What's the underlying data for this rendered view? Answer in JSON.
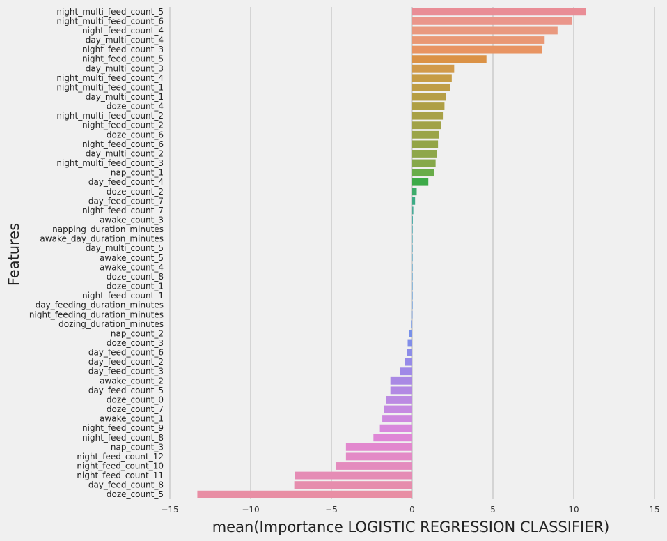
{
  "chart_data": {
    "type": "bar",
    "orientation": "horizontal",
    "xlabel": "mean(Importance LOGISTIC REGRESSION CLASSIFIER)",
    "ylabel": "Features",
    "xlim": [
      -15,
      15
    ],
    "xticks": [
      -15,
      -10,
      -5,
      0,
      5,
      10,
      15
    ],
    "grid": "vertical",
    "categories": [
      "night_multi_feed_count_5",
      "night_multi_feed_count_6",
      "night_feed_count_4",
      "day_multi_count_4",
      "night_feed_count_3",
      "night_feed_count_5",
      "day_multi_count_3",
      "night_multi_feed_count_4",
      "night_multi_feed_count_1",
      "day_multi_count_1",
      "doze_count_4",
      "night_multi_feed_count_2",
      "night_feed_count_2",
      "doze_count_6",
      "night_feed_count_6",
      "day_multi_count_2",
      "night_multi_feed_count_3",
      "nap_count_1",
      "day_feed_count_4",
      "doze_count_2",
      "day_feed_count_7",
      "night_feed_count_7",
      "awake_count_3",
      "napping_duration_minutes",
      "awake_day_duration_minutes",
      "day_multi_count_5",
      "awake_count_5",
      "awake_count_4",
      "doze_count_8",
      "doze_count_1",
      "night_feed_count_1",
      "day_feeding_duration_minutes",
      "night_feeding_duration_minutes",
      "dozing_duration_minutes",
      "nap_count_2",
      "doze_count_3",
      "day_feed_count_6",
      "day_feed_count_2",
      "day_feed_count_3",
      "awake_count_2",
      "day_feed_count_5",
      "doze_count_0",
      "doze_count_7",
      "awake_count_1",
      "night_feed_count_9",
      "night_feed_count_8",
      "nap_count_3",
      "night_feed_count_12",
      "night_feed_count_10",
      "night_feed_count_11",
      "day_feed_count_8",
      "doze_count_5"
    ],
    "values": [
      10.75,
      9.9,
      9.0,
      8.2,
      8.05,
      4.6,
      2.6,
      2.45,
      2.35,
      2.1,
      2.0,
      1.9,
      1.8,
      1.65,
      1.6,
      1.55,
      1.45,
      1.35,
      1.0,
      0.28,
      0.18,
      0.07,
      0.04,
      0.03,
      0.02,
      0.02,
      0.01,
      0.01,
      0.01,
      0.01,
      0.0,
      0.0,
      -0.01,
      -0.03,
      -0.2,
      -0.28,
      -0.33,
      -0.45,
      -0.75,
      -1.35,
      -1.35,
      -1.6,
      -1.75,
      -1.85,
      -2.0,
      -2.4,
      -4.1,
      -4.1,
      -4.7,
      -7.25,
      -7.3,
      -13.3
    ],
    "colors": [
      "#e98d96",
      "#ea968b",
      "#e9997f",
      "#e99874",
      "#e89462",
      "#db9246",
      "#d19a4b",
      "#c69c45",
      "#bf9d45",
      "#b69e45",
      "#ae9f45",
      "#a8a147",
      "#a1a247",
      "#9aa449",
      "#93a547",
      "#8ea74b",
      "#86a84a",
      "#69ac49",
      "#3daa48",
      "#3dab6a",
      "#3dab85",
      "#4aaa98",
      "#45aaa6",
      "#45a9b2",
      "#48a8b8",
      "#4ba6c1",
      "#4ea5c6",
      "#51a3cd",
      "#54a1d3",
      "#589fd8",
      "#5c9ddd",
      "#6099e2",
      "#6596e6",
      "#6b92e8",
      "#7890e9",
      "#818de9",
      "#8c8ce8",
      "#968ae8",
      "#9f89e7",
      "#a989e4",
      "#b289e3",
      "#bb8ae2",
      "#c58ae1",
      "#ce89df",
      "#d888dc",
      "#df87d6",
      "#e288ce",
      "#e38ac6",
      "#e48bbe",
      "#e58cb5",
      "#e68dad",
      "#e88ea4"
    ]
  }
}
